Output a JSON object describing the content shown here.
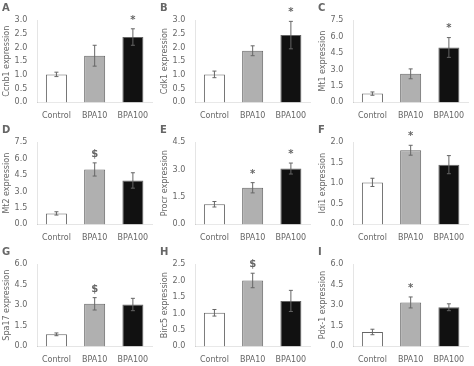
{
  "chart_data": [
    {
      "type": "bar",
      "title": "A",
      "ylabel": "Ccnb1 expression",
      "categories": [
        "Control",
        "BPA10",
        "BPA100"
      ],
      "values": [
        1.02,
        1.7,
        2.38
      ],
      "errors": [
        0.08,
        0.38,
        0.3
      ],
      "colors": [
        "white",
        "#b0b0b0",
        "#111111"
      ],
      "ylim": [
        0,
        3.0
      ],
      "yticks": [
        {
          "value": 0.0,
          "label": "0.0"
        },
        0.5,
        {
          "value": 1.0,
          "label": "1.0"
        },
        1.5,
        {
          "value": 2.0,
          "label": "2.0"
        },
        2.5,
        {
          "value": 3.0,
          "label": "3.0"
        }
      ],
      "annotations": [
        {
          "category": "BPA100",
          "text": "*"
        }
      ],
      "grid": false
    },
    {
      "type": "bar",
      "title": "B",
      "ylabel": "Cdk1 expression",
      "categories": [
        "Control",
        "BPA10",
        "BPA100"
      ],
      "values": [
        1.02,
        1.88,
        2.45
      ],
      "errors": [
        0.12,
        0.18,
        0.5
      ],
      "colors": [
        "white",
        "#b0b0b0",
        "#111111"
      ],
      "ylim": [
        0,
        3.0
      ],
      "yticks": [
        {
          "value": 0.0,
          "label": "0.0"
        },
        0.5,
        {
          "value": 1.0,
          "label": "1.0"
        },
        1.5,
        {
          "value": 2.0,
          "label": "2.0"
        },
        2.5,
        {
          "value": 3.0,
          "label": "3.0"
        }
      ],
      "annotations": [
        {
          "category": "BPA100",
          "text": "*"
        }
      ],
      "grid": false
    },
    {
      "type": "bar",
      "title": "C",
      "ylabel": "Mt1 expression",
      "categories": [
        "Control",
        "BPA10",
        "BPA100"
      ],
      "values": [
        0.8,
        2.6,
        5.0
      ],
      "errors": [
        0.15,
        0.45,
        0.9
      ],
      "colors": [
        "white",
        "#b0b0b0",
        "#111111"
      ],
      "ylim": [
        0,
        7.5
      ],
      "yticks": [
        {
          "value": 0.0,
          "label": "0.0"
        },
        1.5,
        {
          "value": 3.0,
          "label": "3.0"
        },
        4.5,
        {
          "value": 6.0,
          "label": "6.0"
        },
        7.5
      ],
      "annotations": [
        {
          "category": "BPA100",
          "text": "*"
        }
      ],
      "grid": false
    },
    {
      "type": "bar",
      "title": "D",
      "ylabel": "Mt2 expression",
      "categories": [
        "Control",
        "BPA10",
        "BPA100"
      ],
      "values": [
        1.0,
        5.0,
        4.0
      ],
      "errors": [
        0.15,
        0.6,
        0.7
      ],
      "colors": [
        "white",
        "#b0b0b0",
        "#111111"
      ],
      "ylim": [
        0,
        7.5
      ],
      "yticks": [
        {
          "value": 0.0,
          "label": "0.0"
        },
        1.5,
        {
          "value": 3.0,
          "label": "3.0"
        },
        4.5,
        {
          "value": 6.0,
          "label": "6.0"
        },
        7.5
      ],
      "annotations": [
        {
          "category": "BPA10",
          "text": "$"
        }
      ],
      "grid": false
    },
    {
      "type": "bar",
      "title": "E",
      "ylabel": "Procr expression",
      "categories": [
        "Control",
        "BPA10",
        "BPA100"
      ],
      "values": [
        1.1,
        2.0,
        3.05
      ],
      "errors": [
        0.15,
        0.28,
        0.3
      ],
      "colors": [
        "white",
        "#b0b0b0",
        "#111111"
      ],
      "ylim": [
        0,
        4.5
      ],
      "yticks": [
        {
          "value": 0.0,
          "label": "0.0"
        },
        1.5,
        {
          "value": 3.0,
          "label": "3.0"
        },
        4.5
      ],
      "annotations": [
        {
          "category": "BPA10",
          "text": "*"
        },
        {
          "category": "BPA100",
          "text": "*"
        }
      ],
      "grid": false
    },
    {
      "type": "bar",
      "title": "F",
      "ylabel": "Idi1 expression",
      "categories": [
        "Control",
        "BPA10",
        "BPA100"
      ],
      "values": [
        1.02,
        1.8,
        1.45
      ],
      "errors": [
        0.1,
        0.12,
        0.22
      ],
      "colors": [
        "white",
        "#b0b0b0",
        "#111111"
      ],
      "ylim": [
        0,
        2.0
      ],
      "yticks": [
        {
          "value": 0.0,
          "label": "0.0"
        },
        0.5,
        {
          "value": 1.0,
          "label": "1.0"
        },
        1.5,
        {
          "value": 2.0,
          "label": "2.0"
        }
      ],
      "annotations": [
        {
          "category": "BPA10",
          "text": "*"
        }
      ],
      "grid": false
    },
    {
      "type": "bar",
      "title": "G",
      "ylabel": "Spa17 expression",
      "categories": [
        "Control",
        "BPA10",
        "BPA100"
      ],
      "values": [
        0.88,
        3.1,
        3.05
      ],
      "errors": [
        0.1,
        0.45,
        0.45
      ],
      "colors": [
        "white",
        "#b0b0b0",
        "#111111"
      ],
      "ylim": [
        0,
        6.0
      ],
      "yticks": [
        {
          "value": 0.0,
          "label": "0.0"
        },
        1.5,
        {
          "value": 3.0,
          "label": "3.0"
        },
        4.5,
        {
          "value": 6.0,
          "label": "6.0"
        }
      ],
      "annotations": [
        {
          "category": "BPA10",
          "text": "$"
        }
      ],
      "grid": false
    },
    {
      "type": "bar",
      "title": "H",
      "ylabel": "Birc5 expression",
      "categories": [
        "Control",
        "BPA10",
        "BPA100"
      ],
      "values": [
        1.02,
        2.0,
        1.38
      ],
      "errors": [
        0.1,
        0.22,
        0.32
      ],
      "colors": [
        "white",
        "#b0b0b0",
        "#111111"
      ],
      "ylim": [
        0,
        2.5
      ],
      "yticks": [
        {
          "value": 0.0,
          "label": "0.0"
        },
        0.5,
        {
          "value": 1.0,
          "label": "1.0"
        },
        1.5,
        {
          "value": 2.0,
          "label": "2.0"
        },
        2.5
      ],
      "annotations": [
        {
          "category": "BPA10",
          "text": "$"
        }
      ],
      "grid": false
    },
    {
      "type": "bar",
      "title": "I",
      "ylabel": "Pdx-1 expression",
      "categories": [
        "Control",
        "BPA10",
        "BPA100"
      ],
      "values": [
        1.05,
        3.2,
        2.85
      ],
      "errors": [
        0.2,
        0.4,
        0.25
      ],
      "colors": [
        "white",
        "#b0b0b0",
        "#111111"
      ],
      "ylim": [
        0,
        6.0
      ],
      "yticks": [
        {
          "value": 0.0,
          "label": "0.0"
        },
        1.5,
        {
          "value": 3.0,
          "label": "3.0"
        },
        4.5,
        {
          "value": 6.0,
          "label": "6.0"
        }
      ],
      "annotations": [
        {
          "category": "BPA10",
          "text": "*"
        }
      ],
      "grid": false
    }
  ]
}
